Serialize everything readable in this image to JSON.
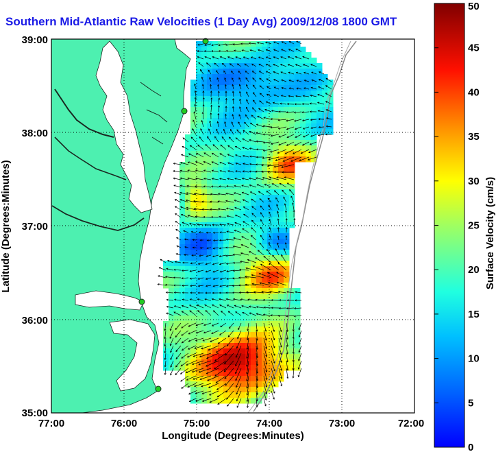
{
  "title": "Southern Mid-Atlantic Raw Velocities (1 Day Avg) 2009/12/08 1800 GMT",
  "x_axis": {
    "label": "Longitude (Degrees:Minutes)",
    "ticks": [
      "77:00",
      "76:00",
      "75:00",
      "74:00",
      "73:00",
      "72:00"
    ]
  },
  "y_axis": {
    "label": "Latitude (Degrees:Minutes)",
    "ticks": [
      "39:00",
      "38:00",
      "37:00",
      "36:00",
      "35:00"
    ]
  },
  "colorbar": {
    "label": "Surface Velocity (cm/s)",
    "ticks": [
      "50",
      "45",
      "40",
      "35",
      "30",
      "25",
      "20",
      "15",
      "10",
      "5",
      "0"
    ],
    "min": 0,
    "max": 50,
    "colormap": "jet"
  },
  "colors": {
    "land": "#4df0b0",
    "title": "#1a1ae6",
    "station": "#22cc22"
  },
  "chart_data": {
    "type": "heatmap",
    "title": "Southern Mid-Atlantic Raw Velocities (1 Day Avg) 2009/12/08 1800 GMT",
    "xlabel": "Longitude (Degrees:Minutes)",
    "ylabel": "Latitude (Degrees:Minutes)",
    "xlim": [
      -77,
      -72
    ],
    "ylim": [
      35,
      39
    ],
    "grid": true,
    "value_label": "Surface Velocity (cm/s)",
    "value_range": [
      0,
      50
    ]
  }
}
